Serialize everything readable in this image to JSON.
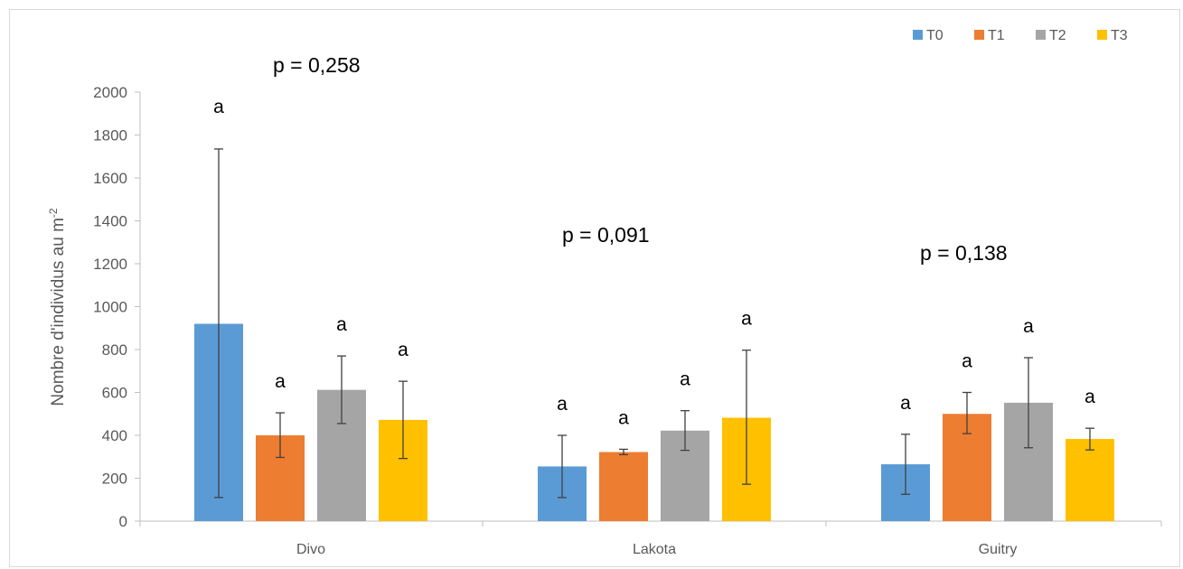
{
  "chart_data": {
    "type": "bar",
    "categories": [
      "Divo",
      "Lakota",
      "Guitry"
    ],
    "ylabel_main": "Nombre d'individus au m",
    "ylabel_sup": "-2",
    "ylim": [
      0,
      2000
    ],
    "yticks": [
      0,
      200,
      400,
      600,
      800,
      1000,
      1200,
      1400,
      1600,
      1800,
      2000
    ],
    "grid": false,
    "legend_position": "top-right",
    "series": [
      {
        "name": "T0",
        "color": "#5b9bd5",
        "values": [
          920,
          255,
          265
        ],
        "err_low": [
          110,
          110,
          125
        ],
        "err_high": [
          1735,
          400,
          405
        ],
        "labels": [
          "",
          "a",
          "a"
        ]
      },
      {
        "name": "T1",
        "color": "#ed7d31",
        "values": [
          400,
          322,
          500
        ],
        "err_low": [
          297,
          310,
          408
        ],
        "err_high": [
          505,
          335,
          600
        ],
        "labels": [
          "a",
          "a",
          "a"
        ]
      },
      {
        "name": "T2",
        "color": "#a5a5a5",
        "values": [
          612,
          422,
          552
        ],
        "err_low": [
          455,
          330,
          342
        ],
        "err_high": [
          770,
          515,
          762
        ],
        "labels": [
          "a",
          "a",
          "a"
        ]
      },
      {
        "name": "T3",
        "color": "#ffc000",
        "values": [
          472,
          482,
          383
        ],
        "err_low": [
          292,
          172,
          332
        ],
        "err_high": [
          652,
          797,
          433
        ],
        "labels": [
          "a",
          "a",
          "a"
        ]
      }
    ],
    "p_values": [
      "p = 0,258",
      "p = 0,091",
      "p = 0,138"
    ],
    "annotations": [
      {
        "text": "a",
        "category": "Divo",
        "series": "T0",
        "y": 2030
      }
    ]
  }
}
